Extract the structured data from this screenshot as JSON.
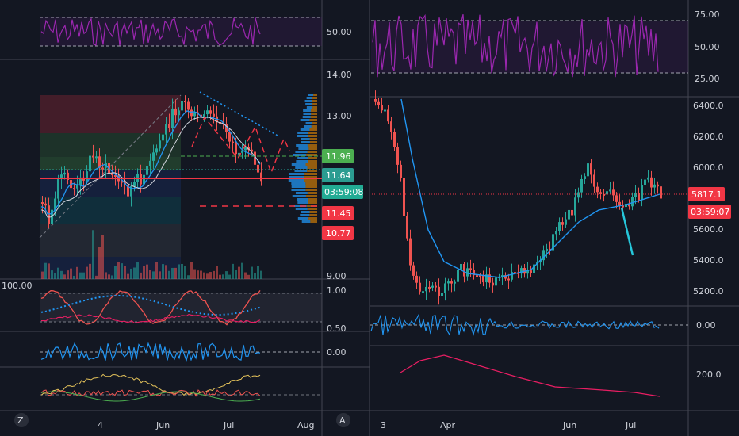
{
  "left": {
    "rsi_scale": [
      "50.00"
    ],
    "price_scale": [
      "14.00",
      "13.00",
      "9.00"
    ],
    "price_tags": [
      {
        "text": "11.96",
        "color": "#4caf50"
      },
      {
        "text": "11.64",
        "color": "#2b9c91"
      },
      {
        "text": "03:59:08",
        "color": "#22ab94"
      },
      {
        "text": "11.45",
        "color": "#f23645"
      },
      {
        "text": "10.77",
        "color": "#f23645"
      }
    ],
    "osc_scale": [
      "1.00",
      "0.50"
    ],
    "osc_left_value": "100.00",
    "macd_scale": [
      "0.00"
    ],
    "time_axis": [
      "4",
      "Jun",
      "Jul",
      "Aug"
    ],
    "logo": "Z"
  },
  "right": {
    "rsi_scale": [
      "75.00",
      "50.00",
      "25.00"
    ],
    "price_scale": [
      "6400.0",
      "6200.0",
      "6000.0",
      "5600.0",
      "5400.0",
      "5200.0"
    ],
    "price_tags": [
      {
        "text": "5817.1",
        "color": "#f23645"
      },
      {
        "text": "03:59:07",
        "color": "#f23645"
      }
    ],
    "osc_scale": [
      "0.00"
    ],
    "bottom_scale": [
      "200.0"
    ],
    "time_axis": [
      "3",
      "Apr",
      "Jun",
      "Jul"
    ],
    "logo": "A"
  },
  "colors": {
    "background": "#131722",
    "up": "#26a69a",
    "down": "#ef5350",
    "rsi": "#9c27b0",
    "ma": "#2196f3",
    "axis_text": "#d1d4dc"
  }
}
